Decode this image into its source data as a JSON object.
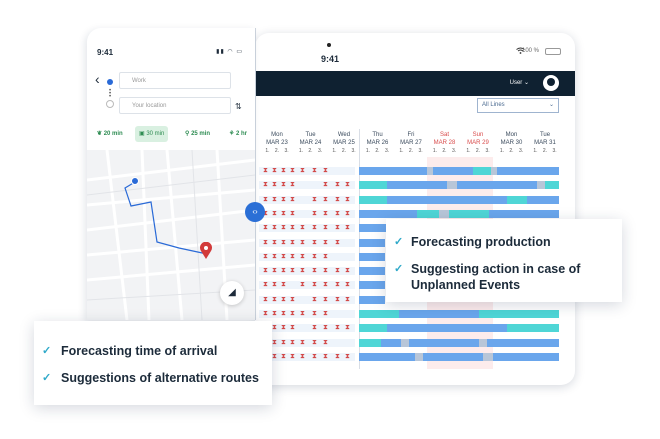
{
  "tablet": {
    "time": "9:41",
    "battery": "100 %",
    "user_label": "User ⌄",
    "select_value": "All Lines",
    "days": [
      {
        "name": "Mon",
        "date": "MAR 23",
        "red": false
      },
      {
        "name": "Tue",
        "date": "MAR 24",
        "red": false
      },
      {
        "name": "Wed",
        "date": "MAR 25",
        "red": false
      },
      {
        "name": "Thu",
        "date": "MAR 26",
        "red": false
      },
      {
        "name": "Fri",
        "date": "MAR 27",
        "red": false
      },
      {
        "name": "Sat",
        "date": "MAR 28",
        "red": true
      },
      {
        "name": "Sun",
        "date": "MAR 29",
        "red": true
      },
      {
        "name": "Mon",
        "date": "MAR 30",
        "red": false
      },
      {
        "name": "Tue",
        "date": "MAR 31",
        "red": false
      }
    ],
    "shift_labels": "1. 2. 3.",
    "split_handle_icon": "‹›",
    "colors": {
      "blue": "#6aa6ec",
      "teal": "#4fd6d6",
      "grey": "#b8c6d8",
      "dark": "#0f2131",
      "hourglass": "#d24848"
    }
  },
  "phone": {
    "time": "9:41",
    "from_placeholder": "Work",
    "to_placeholder": "Your location",
    "modes": [
      {
        "icon": "leaf-icon",
        "label": "20 min"
      },
      {
        "icon": "car-icon",
        "label": "30 min"
      },
      {
        "icon": "bike-icon",
        "label": "25 min"
      },
      {
        "icon": "walk-icon",
        "label": "2 hr"
      }
    ]
  },
  "callouts": {
    "right": [
      "Forecasting production",
      "Suggesting action in case of Unplanned Events"
    ],
    "left": [
      "Forecasting time of arrival",
      "Suggestions of alternative routes"
    ]
  }
}
